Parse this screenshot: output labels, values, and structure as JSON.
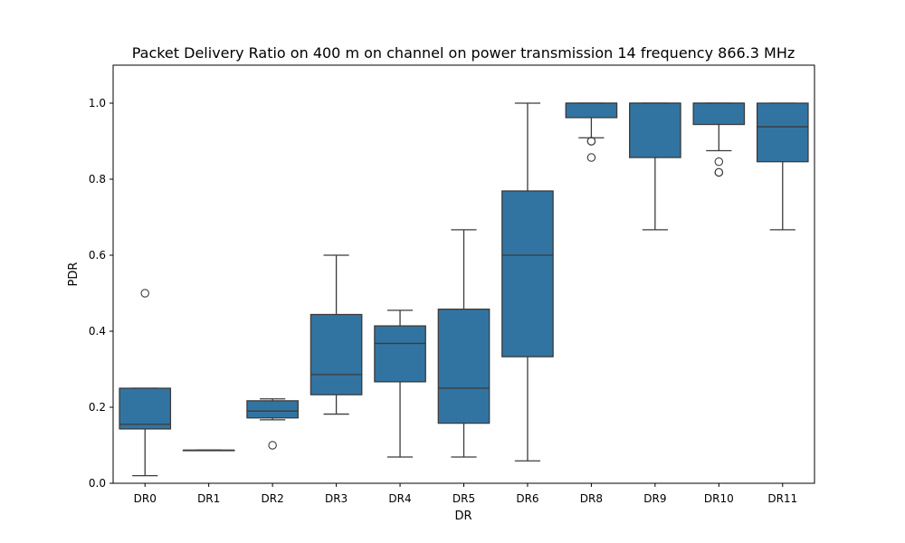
{
  "chart_data": {
    "type": "box",
    "title": "Packet Delivery Ratio on 400 m on channel on power transmission 14 frequency 866.3 MHz",
    "xlabel": "DR",
    "ylabel": "PDR",
    "ylim": [
      0,
      1.1
    ],
    "yticks": [
      "0.0",
      "0.2",
      "0.4",
      "0.6",
      "0.8",
      "1.0"
    ],
    "grid": false,
    "box_color": "#3274a1",
    "categories": [
      "DR0",
      "DR1",
      "DR2",
      "DR3",
      "DR4",
      "DR5",
      "DR6",
      "DR8",
      "DR9",
      "DR10",
      "DR11"
    ],
    "boxes": [
      {
        "whisker_low": 0.02,
        "q1": 0.143,
        "median": 0.155,
        "q3": 0.25,
        "whisker_high": 0.25,
        "outliers": [
          0.5
        ]
      },
      {
        "whisker_low": 0.087,
        "q1": 0.087,
        "median": 0.087,
        "q3": 0.087,
        "whisker_high": 0.087,
        "outliers": []
      },
      {
        "whisker_low": 0.167,
        "q1": 0.172,
        "median": 0.19,
        "q3": 0.217,
        "whisker_high": 0.222,
        "outliers": [
          0.1
        ]
      },
      {
        "whisker_low": 0.182,
        "q1": 0.233,
        "median": 0.286,
        "q3": 0.444,
        "whisker_high": 0.6,
        "outliers": []
      },
      {
        "whisker_low": 0.069,
        "q1": 0.267,
        "median": 0.368,
        "q3": 0.414,
        "whisker_high": 0.455,
        "outliers": []
      },
      {
        "whisker_low": 0.069,
        "q1": 0.158,
        "median": 0.25,
        "q3": 0.458,
        "whisker_high": 0.667,
        "outliers": []
      },
      {
        "whisker_low": 0.059,
        "q1": 0.333,
        "median": 0.6,
        "q3": 0.769,
        "whisker_high": 1.0,
        "outliers": []
      },
      {
        "whisker_low": 0.909,
        "q1": 0.962,
        "median": 1.0,
        "q3": 1.0,
        "whisker_high": 1.0,
        "outliers": [
          0.9,
          0.9,
          0.857
        ]
      },
      {
        "whisker_low": 0.667,
        "q1": 0.857,
        "median": 1.0,
        "q3": 1.0,
        "whisker_high": 1.0,
        "outliers": []
      },
      {
        "whisker_low": 0.875,
        "q1": 0.944,
        "median": 1.0,
        "q3": 1.0,
        "whisker_high": 1.0,
        "outliers": [
          0.846,
          0.818,
          0.818
        ]
      },
      {
        "whisker_low": 0.667,
        "q1": 0.846,
        "median": 0.938,
        "q3": 1.0,
        "whisker_high": 1.0,
        "outliers": []
      }
    ]
  }
}
